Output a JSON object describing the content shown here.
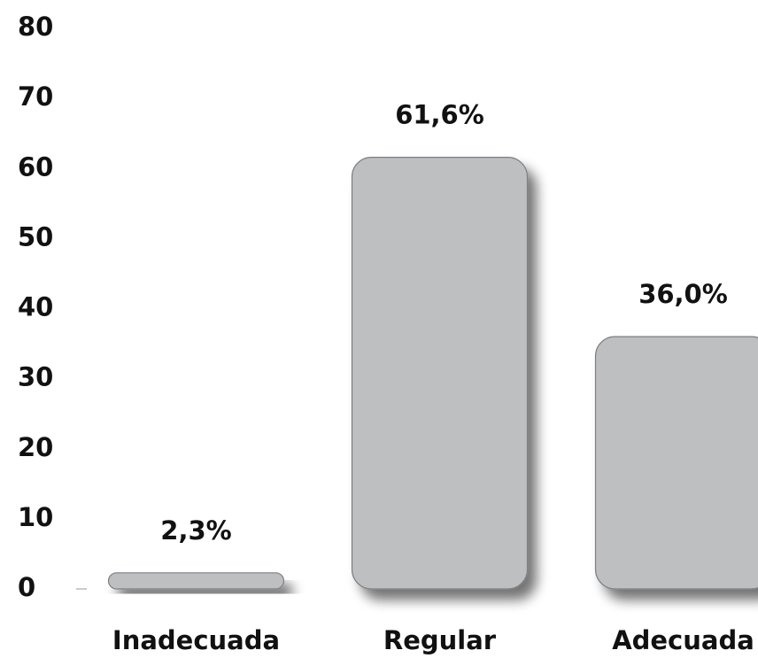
{
  "chart_data": {
    "type": "bar",
    "categories": [
      "Inadecuada",
      "Regular",
      "Adecuada"
    ],
    "values": [
      2.3,
      61.6,
      36.0
    ],
    "value_labels": [
      "2,3%",
      "61,6%",
      "36,0%"
    ],
    "color": "#bdbfc1",
    "ylim": [
      0,
      80
    ],
    "yticks": [
      0,
      10,
      20,
      30,
      40,
      50,
      60,
      70,
      80
    ],
    "grid": false
  }
}
